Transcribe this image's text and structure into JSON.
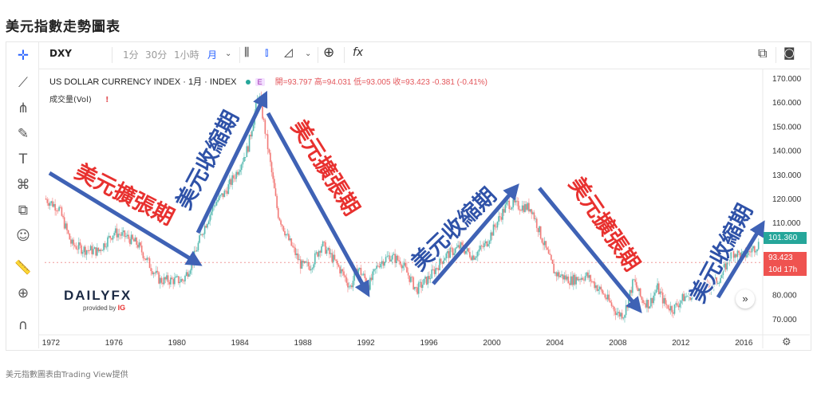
{
  "page_title": "美元指數走勢圖表",
  "caption": "美元指數圖表由Trading View提供",
  "toolbar": {
    "symbol": "DXY",
    "intervals": [
      "1分",
      "30分",
      "1小時"
    ],
    "active_interval": "月",
    "fx_label": "fx"
  },
  "legend": {
    "instrument": "US DOLLAR CURRENCY INDEX · 1月 · INDEX",
    "badge": "E",
    "ohlc": "開=93.797 高=94.031 低=93.005 收=93.423 -0.381 (-0.41%)",
    "volume": "成交量(Vol)",
    "alert": "!"
  },
  "logo": {
    "word": "DAILYFX",
    "sub": "provided by",
    "brand": "IG"
  },
  "price_tags": {
    "current": "101.360",
    "last": "93.423",
    "countdown": "10d 17h"
  },
  "colors": {
    "up": "#26a69a",
    "down": "#ef5350",
    "arrow": "#3f62b5",
    "expand": "#e8312f",
    "contract": "#2f52a8"
  },
  "annotations": [
    {
      "text": "美元擴張期",
      "type": "expand"
    },
    {
      "text": "美元收縮期",
      "type": "contract"
    },
    {
      "text": "美元擴張期",
      "type": "expand"
    },
    {
      "text": "美元收縮期",
      "type": "contract"
    },
    {
      "text": "美元擴張期",
      "type": "expand"
    },
    {
      "text": "美元收縮期",
      "type": "contract"
    }
  ],
  "chart_data": {
    "type": "line",
    "title": "US DOLLAR CURRENCY INDEX",
    "x_ticks": [
      "1972",
      "1976",
      "1980",
      "1984",
      "1988",
      "1992",
      "1996",
      "2000",
      "2004",
      "2008",
      "2012",
      "2016"
    ],
    "y_ticks": [
      "170.000",
      "160.000",
      "150.000",
      "140.000",
      "130.000",
      "120.000",
      "110.000",
      "80.000",
      "70.000"
    ],
    "ylim": [
      64,
      172
    ],
    "xlim": [
      1971.6,
      2017.2
    ],
    "series": [
      {
        "x": [
          1971.6,
          1972.5,
          1973.3,
          1974.0,
          1975.0,
          1976.0,
          1976.8,
          1977.5,
          1978.3,
          1978.9,
          1979.6,
          1980.4,
          1981.0,
          1981.6,
          1982.4,
          1983.0,
          1983.8,
          1984.5,
          1985.2,
          1985.8,
          1986.4,
          1987.0,
          1987.9,
          1988.5,
          1989.2,
          1989.9,
          1990.6,
          1991.0,
          1991.5,
          1992.2,
          1992.8,
          1993.5,
          1994.2,
          1995.2,
          1996.0,
          1997.0,
          1998.0,
          1998.8,
          1999.6,
          2000.4,
          2001.0,
          2001.6,
          2002.5,
          2003.3,
          2004.0,
          2005.0,
          2006.0,
          2007.0,
          2008.0,
          2008.4,
          2009.0,
          2009.5,
          2010.0,
          2010.5,
          2011.0,
          2011.5,
          2012.2,
          2013.0,
          2014.0,
          2014.6,
          2015.2,
          2016.0,
          2017.0
        ],
        "values": [
          120.0,
          116.0,
          101.0,
          99.0,
          98.0,
          106.0,
          104.0,
          101.0,
          92.0,
          86.0,
          86.0,
          86.0,
          94.0,
          106.0,
          118.0,
          122.0,
          131.0,
          141.0,
          164.0,
          140.0,
          114.0,
          104.0,
          92.0,
          92.0,
          101.0,
          95.0,
          88.0,
          83.0,
          91.0,
          84.0,
          93.0,
          96.0,
          94.0,
          82.0,
          87.0,
          96.0,
          100.0,
          96.0,
          101.0,
          111.0,
          118.0,
          117.0,
          116.0,
          101.0,
          89.0,
          86.0,
          88.0,
          81.0,
          72.0,
          72.0,
          86.0,
          78.0,
          76.0,
          83.0,
          76.0,
          74.0,
          79.0,
          81.0,
          84.0,
          88.0,
          98.0,
          96.0,
          101.4
        ]
      }
    ]
  }
}
